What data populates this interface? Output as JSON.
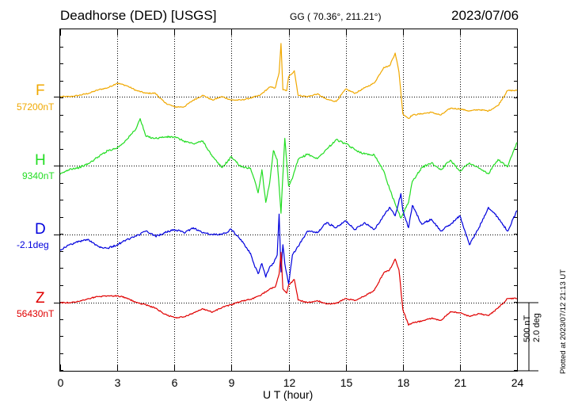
{
  "header": {
    "station": "Deadhorse (DED)  [USGS]",
    "coords": "GG ( 70.36°, 211.21°)",
    "date": "2023/07/06"
  },
  "footer": {
    "xlabel": "U T (hour)",
    "scale_nt": "500 nT",
    "scale_deg": "2.0 deg",
    "plotted": "Plotted at 2023/07/12 21:13 UT"
  },
  "chart_data": {
    "type": "line",
    "xlabel": "U T (hour)",
    "xlim": [
      0,
      24
    ],
    "x_ticks": [
      0,
      3,
      6,
      9,
      12,
      15,
      18,
      21,
      24
    ],
    "grid": true,
    "scale_bar": "500 nT / 2.0 deg",
    "series": [
      {
        "name": "F",
        "baseline": "57200nT",
        "color": "#f0a800",
        "x": [
          0,
          0.5,
          1,
          1.5,
          2,
          2.5,
          3,
          3.5,
          4,
          4.5,
          5,
          5.5,
          6,
          6.5,
          7,
          7.5,
          8,
          8.5,
          9,
          9.5,
          10,
          10.5,
          11,
          11.3,
          11.5,
          11.6,
          11.7,
          11.9,
          12,
          12.3,
          12.5,
          13,
          13.5,
          14,
          14.5,
          15,
          15.5,
          16,
          16.5,
          17,
          17.3,
          17.6,
          17.8,
          18,
          18.3,
          18.5,
          19,
          19.5,
          20,
          20.5,
          21,
          21.5,
          22,
          22.5,
          23,
          23.5,
          24
        ],
        "y": [
          0,
          0,
          10,
          25,
          50,
          65,
          100,
          80,
          45,
          25,
          25,
          -45,
          -75,
          -75,
          -25,
          10,
          -25,
          0,
          -25,
          -25,
          -10,
          10,
          70,
          65,
          175,
          390,
          50,
          45,
          145,
          190,
          10,
          0,
          20,
          -20,
          -35,
          55,
          25,
          65,
          100,
          215,
          225,
          320,
          180,
          -125,
          -160,
          -135,
          -125,
          -115,
          -135,
          -85,
          -90,
          -105,
          -95,
          -105,
          -65,
          45,
          45
        ]
      },
      {
        "name": "H",
        "baseline": "9340nT",
        "color": "#22dd22",
        "x": [
          0,
          0.5,
          1,
          1.5,
          2,
          2.5,
          3,
          3.5,
          4,
          4.2,
          4.5,
          5,
          5.5,
          6,
          6.5,
          7,
          7.5,
          8,
          8.5,
          9,
          9.5,
          10,
          10.2,
          10.4,
          10.6,
          10.8,
          11,
          11.2,
          11.4,
          11.6,
          11.8,
          12,
          12.2,
          12.5,
          13,
          13.5,
          14,
          14.5,
          15,
          15.5,
          16,
          16.5,
          17,
          17.3,
          17.6,
          17.9,
          18,
          18.3,
          18.5,
          19,
          19.5,
          20,
          20.5,
          21,
          21.5,
          22,
          22.5,
          23,
          23.5,
          24
        ],
        "y": [
          -65,
          -25,
          -15,
          15,
          65,
          110,
          130,
          190,
          275,
          345,
          215,
          200,
          210,
          210,
          180,
          160,
          180,
          65,
          -15,
          65,
          -10,
          -20,
          -100,
          -200,
          -30,
          -270,
          -130,
          110,
          45,
          -350,
          200,
          -150,
          -95,
          45,
          85,
          50,
          120,
          190,
          160,
          115,
          85,
          80,
          -40,
          -170,
          -280,
          -385,
          -355,
          -270,
          -115,
          -15,
          20,
          -30,
          40,
          -40,
          20,
          -20,
          -60,
          45,
          -10,
          170
        ]
      },
      {
        "name": "D",
        "baseline": "-2.1deg",
        "color": "#0000dd",
        "x": [
          0,
          0.5,
          1,
          1.5,
          2,
          2.5,
          3,
          3.5,
          4,
          4.5,
          5,
          5.5,
          6,
          6.5,
          7,
          7.5,
          8,
          8.5,
          9,
          9.5,
          10,
          10.2,
          10.4,
          10.6,
          10.8,
          11,
          11.2,
          11.4,
          11.5,
          11.6,
          11.7,
          11.8,
          12,
          12.2,
          12.5,
          13,
          13.5,
          14,
          14.5,
          15,
          15.5,
          16,
          16.5,
          17,
          17.3,
          17.6,
          17.9,
          18,
          18.3,
          18.5,
          19,
          19.5,
          20,
          20.5,
          21,
          21.5,
          22,
          22.5,
          23,
          23.5,
          24
        ],
        "y": [
          -0.45,
          -0.3,
          -0.2,
          -0.15,
          -0.35,
          -0.4,
          -0.3,
          -0.15,
          -0.05,
          0.1,
          -0.05,
          0.05,
          0.15,
          0.05,
          0.2,
          0.05,
          0,
          0,
          0.15,
          -0.15,
          -0.55,
          -0.9,
          -1.15,
          -0.85,
          -1.25,
          -0.95,
          -0.85,
          -0.6,
          0.6,
          -1.1,
          -0.3,
          -0.85,
          -1.45,
          -0.6,
          -0.35,
          0.1,
          0.05,
          0.35,
          0.2,
          0.4,
          0.15,
          0.35,
          0.15,
          0.55,
          0.8,
          0.55,
          1.2,
          0.7,
          0.2,
          0.85,
          0.3,
          0.45,
          0.1,
          0.3,
          0.55,
          -0.3,
          0.2,
          0.8,
          0.5,
          0.1,
          0.7
        ]
      },
      {
        "name": "Z",
        "baseline": "56430nT",
        "color": "#e00000",
        "x": [
          0,
          0.5,
          1,
          1.5,
          2,
          2.5,
          3,
          3.5,
          4,
          4.5,
          5,
          5.5,
          6,
          6.5,
          7,
          7.5,
          8,
          8.5,
          9,
          9.5,
          10,
          10.5,
          11,
          11.3,
          11.5,
          11.6,
          11.7,
          11.9,
          12,
          12.3,
          12.5,
          13,
          13.5,
          14,
          14.5,
          15,
          15.5,
          16,
          16.5,
          17,
          17.3,
          17.6,
          17.8,
          18,
          18.3,
          18.5,
          19,
          19.5,
          20,
          20.5,
          21,
          21.5,
          22,
          22.5,
          23,
          23.5,
          24
        ],
        "y": [
          0,
          0,
          10,
          30,
          45,
          50,
          50,
          35,
          0,
          -15,
          -40,
          -85,
          -110,
          -105,
          -75,
          -45,
          -70,
          -35,
          -15,
          10,
          25,
          50,
          100,
          115,
          210,
          370,
          100,
          70,
          130,
          170,
          20,
          0,
          15,
          -10,
          -5,
          30,
          15,
          50,
          90,
          220,
          240,
          320,
          240,
          -50,
          -165,
          -150,
          -135,
          -115,
          -130,
          -65,
          -75,
          -100,
          -80,
          -95,
          -40,
          30,
          30
        ]
      }
    ]
  }
}
